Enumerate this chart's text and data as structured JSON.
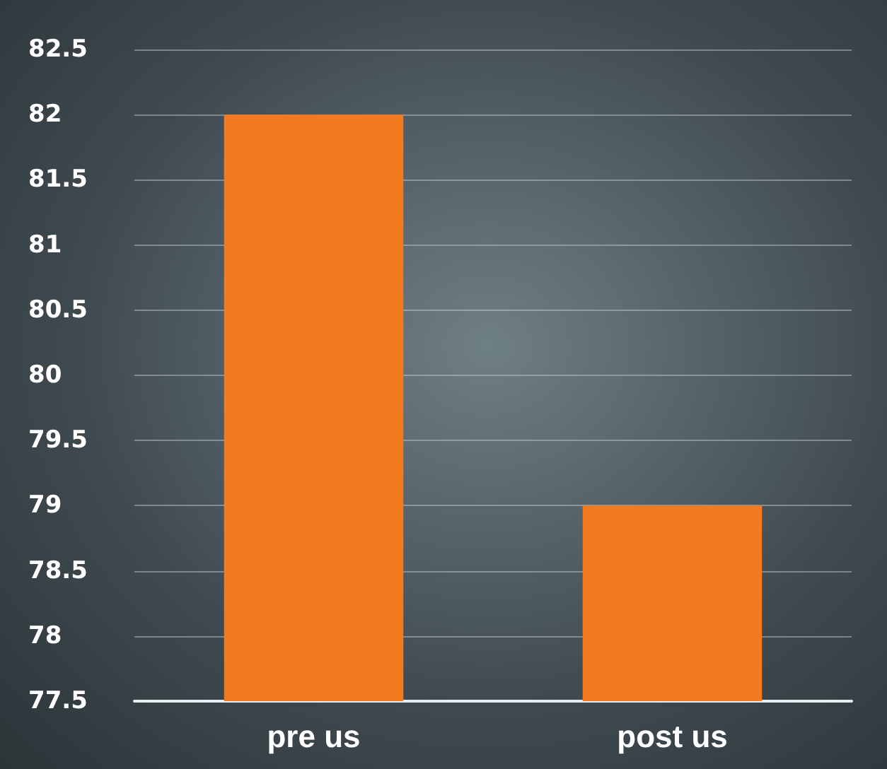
{
  "chart_data": {
    "type": "bar",
    "categories": [
      "pre us",
      "post us"
    ],
    "values": [
      82,
      79
    ],
    "color": "#f47a20",
    "ylim": [
      77.5,
      82.5
    ],
    "yticks": [
      77.5,
      78,
      78.5,
      79,
      79.5,
      80,
      80.5,
      81,
      81.5,
      82,
      82.5
    ],
    "grid": "y"
  }
}
